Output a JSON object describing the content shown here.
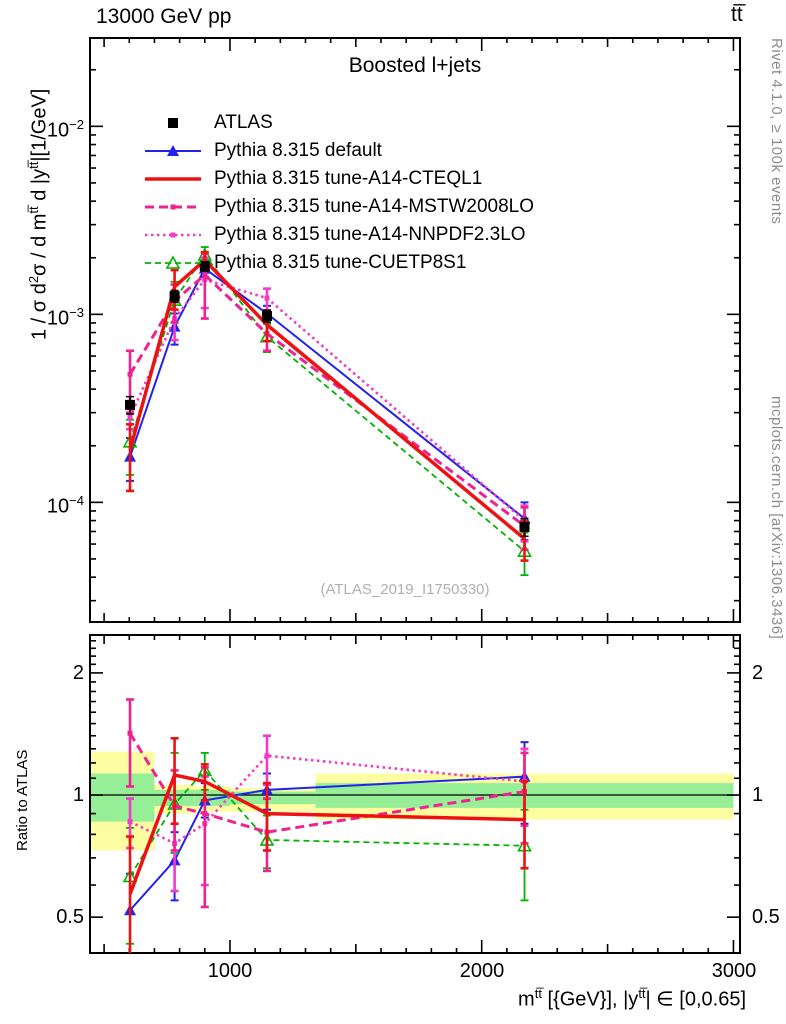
{
  "header": {
    "left": "13000 GeV pp",
    "right": "tt̅"
  },
  "panel_title": "Boosted l+jets",
  "watermark": "(ATLAS_2019_I1750330)",
  "side_notes": {
    "top_right": "Rivet 4.1.0, ≥ 100k events",
    "bottom_right": "mcplots.cern.ch [arXiv:1306.3436]"
  },
  "ratio_ylabel": "Ratio to ATLAS",
  "y_title_parts": [
    {
      "t": "1 / σ d"
    },
    {
      "t": "2",
      "sup": true
    },
    {
      "t": "σ / d m"
    },
    {
      "t": "tt̅",
      "sup": true
    },
    {
      "t": " d |y"
    },
    {
      "t": "tt̅",
      "sup": true
    },
    {
      "t": "|[1/GeV]"
    }
  ],
  "x_title_parts": [
    {
      "t": "m"
    },
    {
      "t": "tt̅",
      "sup": true
    },
    {
      "t": " [{GeV}], |y"
    },
    {
      "t": "tt̅",
      "sup": true
    },
    {
      "t": "| ∈ [0,0.65]"
    }
  ],
  "chart_data": {
    "type": "line",
    "title": "Boosted l+jets",
    "x": [
      603,
      780,
      900,
      1147,
      2170
    ],
    "x_axis": {
      "scale": "linear",
      "min": 444,
      "max": 3026,
      "unit": "GeV",
      "ticks": [
        {
          "value": 1000,
          "label": "1000"
        },
        {
          "value": 2000,
          "label": "2000"
        },
        {
          "value": 3000,
          "label": "3000"
        }
      ]
    },
    "main_axis": {
      "scale": "log",
      "min": 2.31e-05,
      "max": 0.0295,
      "ticks": [
        {
          "value": 0.01,
          "base": "10",
          "exp": "−2"
        },
        {
          "value": 0.001,
          "base": "10",
          "exp": "−3"
        },
        {
          "value": 0.0001,
          "base": "10",
          "exp": "−4"
        }
      ]
    },
    "ratio_axis": {
      "scale": "log",
      "min": 0.408,
      "max": 2.48,
      "ticks": [
        {
          "value": 2,
          "label": "2"
        },
        {
          "value": 1,
          "label": "1"
        },
        {
          "value": 0.5,
          "label": "0.5"
        }
      ]
    },
    "band_colors": {
      "outer": "#fdfda2",
      "inner": "#96ee96"
    },
    "uncertainty_bands": [
      {
        "x_lo": 444,
        "x_hi": 700,
        "outer": [
          0.73,
          1.28
        ],
        "inner": [
          0.86,
          1.13
        ]
      },
      {
        "x_lo": 700,
        "x_hi": 860,
        "outer": [
          0.9,
          1.06
        ],
        "inner": [
          0.94,
          1.03
        ]
      },
      {
        "x_lo": 860,
        "x_hi": 1000,
        "outer": [
          0.91,
          1.05
        ],
        "inner": [
          0.94,
          1.03
        ]
      },
      {
        "x_lo": 1000,
        "x_hi": 1340,
        "outer": [
          0.91,
          1.04
        ],
        "inner": [
          0.95,
          1.02
        ]
      },
      {
        "x_lo": 1340,
        "x_hi": 3000,
        "outer": [
          0.87,
          1.13
        ],
        "inner": [
          0.93,
          1.07
        ]
      }
    ],
    "series": [
      {
        "key": "atlas",
        "name": "ATLAS",
        "color": "#000000",
        "line": "none",
        "width": 0,
        "marker": "square-filled",
        "values": [
          0.00033,
          0.00125,
          0.0018,
          0.00098,
          7.4e-05
        ],
        "err_lo": [
          0.000295,
          0.00116,
          0.0017,
          0.00091,
          6.6e-05
        ],
        "err_hi": [
          0.000365,
          0.00134,
          0.0019,
          0.00105,
          8.2e-05
        ]
      },
      {
        "key": "pythia-default",
        "name": "Pythia 8.315 default",
        "color": "#2222ee",
        "line": "solid",
        "width": 2,
        "dash": "",
        "marker": "triangle-filled",
        "values": [
          0.000175,
          0.00086,
          0.00175,
          0.00101,
          8.2e-05
        ],
        "err_lo": [
          0.00013,
          0.00069,
          0.00158,
          0.0009,
          6.3e-05
        ],
        "err_hi": [
          0.00022,
          0.00101,
          0.00192,
          0.00111,
          0.0001
        ],
        "ratio": [
          0.52,
          0.69,
          0.97,
          1.03,
          1.11
        ],
        "ratio_lo": [
          0.4,
          0.55,
          0.88,
          0.92,
          0.85
        ],
        "ratio_hi": [
          0.64,
          0.81,
          1.07,
          1.13,
          1.35
        ]
      },
      {
        "key": "a14-cteql1",
        "name": "Pythia 8.315 tune-A14-CTEQL1",
        "color": "#ee1111",
        "line": "solid",
        "width": 3.5,
        "dash": "",
        "marker": "none",
        "values": [
          0.00019,
          0.0014,
          0.00194,
          0.00088,
          6.4e-05
        ],
        "err_lo": [
          0.000115,
          0.00106,
          0.00174,
          0.00072,
          4.9e-05
        ],
        "err_hi": [
          0.00026,
          0.00172,
          0.00214,
          0.00105,
          7.9e-05
        ],
        "ratio": [
          0.57,
          1.12,
          1.08,
          0.9,
          0.87
        ],
        "ratio_lo": [
          0.36,
          0.85,
          0.97,
          0.73,
          0.66
        ],
        "ratio_hi": [
          0.79,
          1.38,
          1.19,
          1.07,
          1.08
        ]
      },
      {
        "key": "a14-mstw2008lo",
        "name": "Pythia 8.315 tune-A14-MSTW2008LO",
        "color": "#ee2290",
        "line": "dashed",
        "width": 3,
        "dash": "9,5",
        "marker": "square-small",
        "values": [
          0.00048,
          0.00118,
          0.00162,
          0.00079,
          7.5e-05
        ],
        "err_lo": [
          0.0003,
          0.00091,
          0.00095,
          0.00064,
          5.6e-05
        ],
        "err_hi": [
          0.00064,
          0.00144,
          0.0021,
          0.00096,
          9.4e-05
        ],
        "ratio": [
          1.42,
          0.94,
          0.9,
          0.81,
          1.02
        ],
        "ratio_lo": [
          1.05,
          0.73,
          0.53,
          0.65,
          0.76
        ],
        "ratio_hi": [
          1.72,
          1.15,
          1.17,
          0.98,
          1.27
        ]
      },
      {
        "key": "a14-nnpdf23lo",
        "name": "Pythia 8.315 tune-A14-NNPDF2.3LO",
        "color": "#f03cc8",
        "line": "dotted",
        "width": 2.6,
        "dash": "2.5,3.5",
        "marker": "square-small",
        "values": [
          0.000285,
          0.00095,
          0.00153,
          0.00122,
          8e-05
        ],
        "err_lo": [
          0.000245,
          0.00073,
          0.00108,
          0.00104,
          6.2e-05
        ],
        "err_hi": [
          0.000325,
          0.00116,
          0.002,
          0.00137,
          9.6e-05
        ],
        "ratio": [
          0.86,
          0.76,
          0.85,
          1.25,
          1.08
        ],
        "ratio_lo": [
          0.74,
          0.58,
          0.6,
          1.06,
          0.84
        ],
        "ratio_hi": [
          0.98,
          0.93,
          1.11,
          1.4,
          1.3
        ]
      },
      {
        "key": "cuetp8s1",
        "name": "Pythia 8.315 tune-CUETP8S1",
        "color": "#00b400",
        "line": "dashed",
        "width": 1.8,
        "dash": "6,4",
        "marker": "triangle-open",
        "values": [
          0.00021,
          0.00119,
          0.00207,
          0.00076,
          5.5e-05
        ],
        "err_lo": [
          0.00014,
          0.0009,
          0.00186,
          0.00063,
          4.1e-05
        ],
        "err_hi": [
          0.000275,
          0.00149,
          0.00228,
          0.00089,
          6.9e-05
        ],
        "ratio": [
          0.63,
          0.95,
          1.15,
          0.775,
          0.75
        ],
        "ratio_lo": [
          0.43,
          0.72,
          1.03,
          0.66,
          0.55
        ],
        "ratio_hi": [
          0.83,
          1.27,
          1.27,
          0.89,
          0.92
        ]
      }
    ]
  }
}
